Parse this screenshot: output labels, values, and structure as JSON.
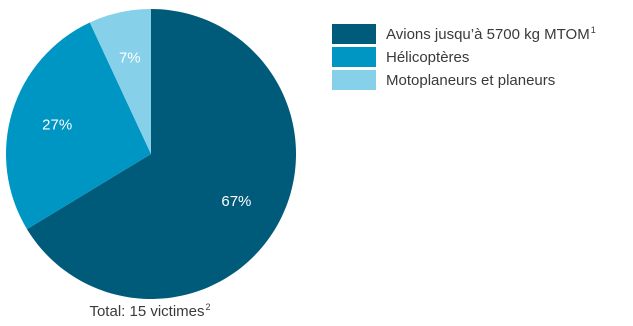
{
  "chart_data": {
    "type": "pie",
    "slices": [
      {
        "label": "Avions jusqu’à 5700 kg MTOM",
        "footnote": "1",
        "percent": 67,
        "display": "67%",
        "color": "#005a7a"
      },
      {
        "label": "Hélicoptères",
        "footnote": "",
        "percent": 27,
        "display": "27%",
        "color": "#0096c4"
      },
      {
        "label": "Motoplaneurs et planeurs",
        "footnote": "",
        "percent": 7,
        "display": "7%",
        "color": "#87d0ea"
      }
    ],
    "total_label": "Total:  15 victimes",
    "total_footnote": "2",
    "start_angle_deg": 0,
    "direction": "clockwise",
    "legend_position": "top-right"
  }
}
